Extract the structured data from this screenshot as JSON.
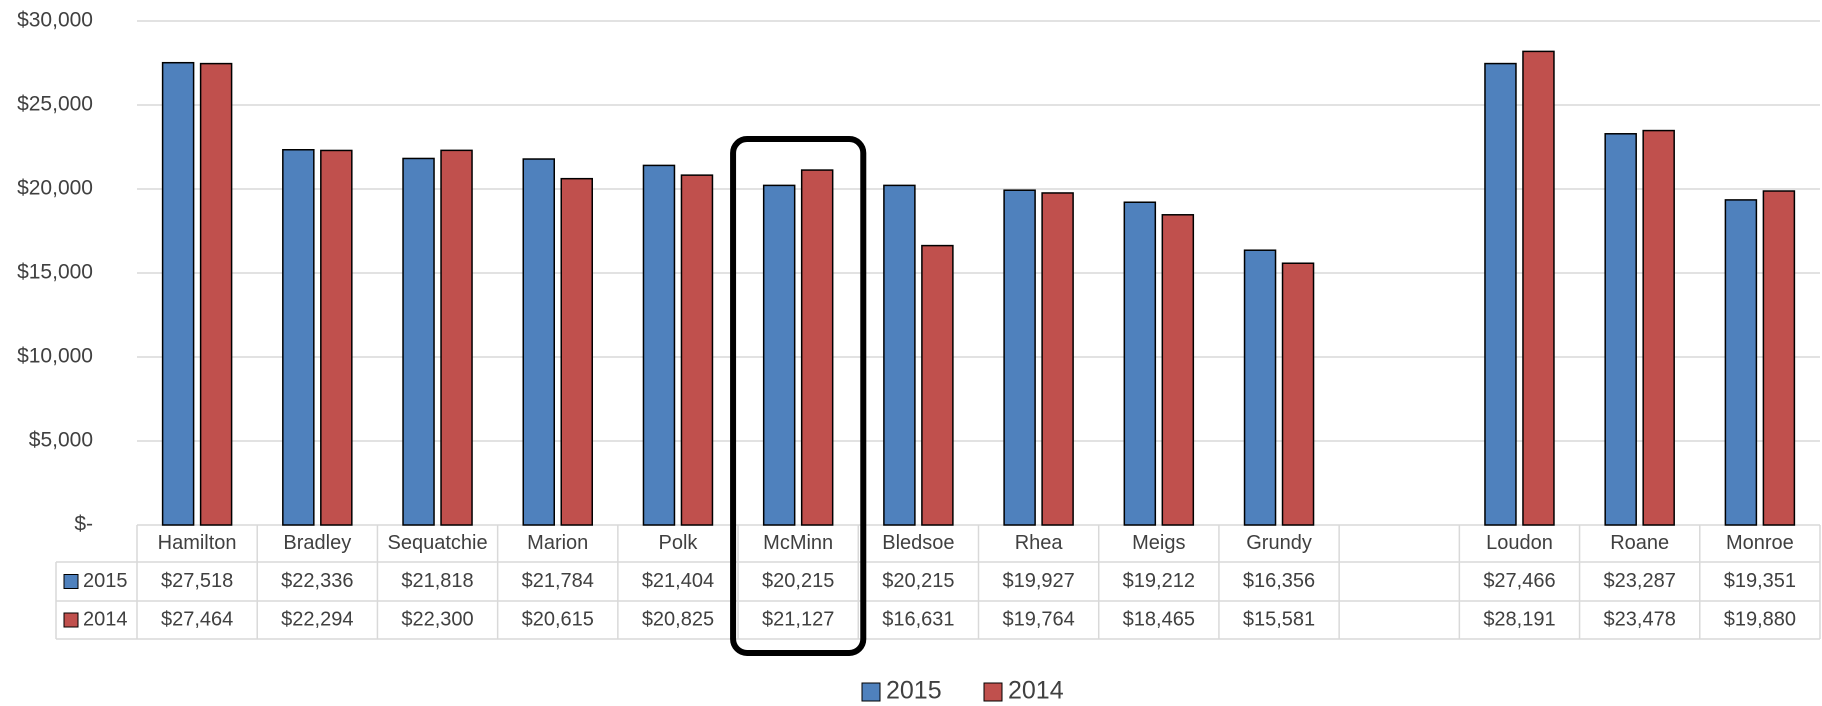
{
  "chart_data": {
    "type": "bar",
    "categories": [
      "Hamilton",
      "Bradley",
      "Sequatchie",
      "Marion",
      "Polk",
      "McMinn",
      "Bledsoe",
      "Rhea",
      "Meigs",
      "Grundy",
      null,
      "Loudon",
      "Roane",
      "Monroe"
    ],
    "series": [
      {
        "name": "2015",
        "color": "#4f81bd",
        "values": [
          27518,
          22336,
          21818,
          21784,
          21404,
          20215,
          20215,
          19927,
          19212,
          16356,
          null,
          27466,
          23287,
          19351
        ],
        "value_labels": [
          "$27,518",
          "$22,336",
          "$21,818",
          "$21,784",
          "$21,404",
          "$20,215",
          "$20,215",
          "$19,927",
          "$19,212",
          "$16,356",
          null,
          "$27,466",
          "$23,287",
          "$19,351"
        ]
      },
      {
        "name": "2014",
        "color": "#c0504d",
        "values": [
          27464,
          22294,
          22300,
          20615,
          20825,
          21127,
          16631,
          19764,
          18465,
          15581,
          null,
          28191,
          23478,
          19880
        ],
        "value_labels": [
          "$27,464",
          "$22,294",
          "$22,300",
          "$20,615",
          "$20,825",
          "$21,127",
          "$16,631",
          "$19,764",
          "$18,465",
          "$15,581",
          null,
          "$28,191",
          "$23,478",
          "$19,880"
        ]
      }
    ],
    "ylim": [
      0,
      30000
    ],
    "yticks": [
      {
        "value": 0,
        "label": "$-"
      },
      {
        "value": 5000,
        "label": "$5,000"
      },
      {
        "value": 10000,
        "label": "$10,000"
      },
      {
        "value": 15000,
        "label": "$15,000"
      },
      {
        "value": 20000,
        "label": "$20,000"
      },
      {
        "value": 25000,
        "label": "$25,000"
      },
      {
        "value": 30000,
        "label": "$30,000"
      }
    ],
    "grid": true,
    "legend": "bottom"
  }
}
